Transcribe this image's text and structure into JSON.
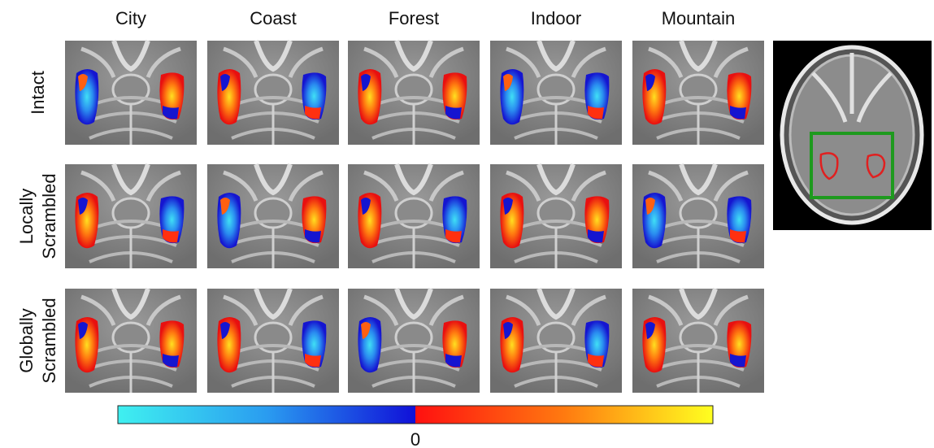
{
  "columns": [
    "City",
    "Coast",
    "Forest",
    "Indoor",
    "Mountain"
  ],
  "rows": [
    [
      "Intact"
    ],
    [
      "Locally",
      "Scrambled"
    ],
    [
      "Globally",
      "Scrambled"
    ]
  ],
  "colorbar": {
    "center_label": "0"
  }
}
